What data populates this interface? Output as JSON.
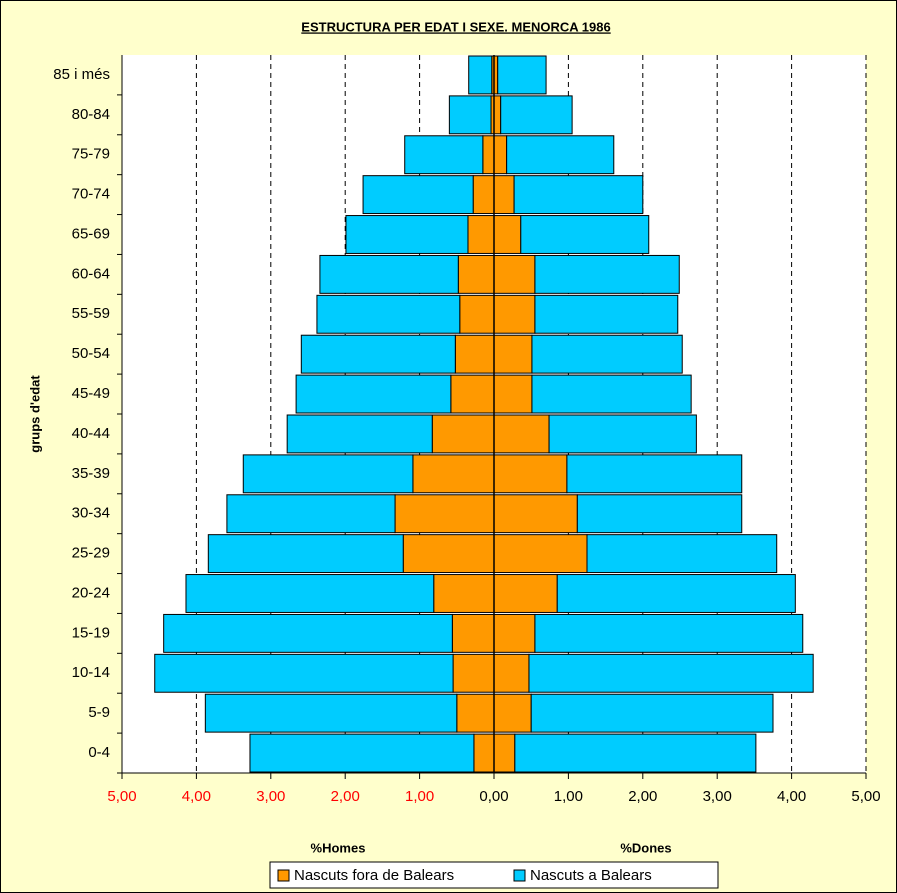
{
  "chart_data": {
    "type": "pyramid",
    "title": "ESTRUCTURA PER EDAT I SEXE. MENORCA 1986",
    "y_label": "grups d'edat",
    "left_label": "%Homes",
    "right_label": "%Dones",
    "categories": [
      "0-4",
      "5-9",
      "10-14",
      "15-19",
      "20-24",
      "25-29",
      "30-34",
      "35-39",
      "40-44",
      "45-49",
      "50-54",
      "55-59",
      "60-64",
      "65-69",
      "70-74",
      "75-79",
      "80-84",
      "85 i més"
    ],
    "series": [
      {
        "name": "Nascuts fora de Balears",
        "color": "#ff9900",
        "homes": [
          -0.27,
          -0.5,
          -0.55,
          -0.56,
          -0.81,
          -1.22,
          -1.33,
          -1.09,
          -0.83,
          -0.58,
          -0.52,
          -0.46,
          -0.48,
          -0.35,
          -0.28,
          -0.15,
          -0.04,
          -0.03
        ],
        "dones": [
          0.28,
          0.5,
          0.47,
          0.55,
          0.85,
          1.25,
          1.12,
          0.98,
          0.74,
          0.51,
          0.51,
          0.55,
          0.55,
          0.36,
          0.27,
          0.17,
          0.09,
          0.05
        ]
      },
      {
        "name": "Nascuts a Balears",
        "color": "#00ccff",
        "homes": [
          -3.01,
          -3.38,
          -4.01,
          -3.88,
          -3.33,
          -2.62,
          -2.26,
          -2.28,
          -1.95,
          -2.08,
          -2.07,
          -1.92,
          -1.86,
          -1.64,
          -1.48,
          -1.05,
          -0.56,
          -0.31
        ],
        "dones": [
          3.24,
          3.25,
          3.82,
          3.6,
          3.2,
          2.55,
          2.21,
          2.35,
          1.98,
          2.14,
          2.02,
          1.92,
          1.94,
          1.72,
          1.73,
          1.44,
          0.96,
          0.65
        ]
      }
    ],
    "xlim": [
      -5,
      5
    ],
    "xticks": [
      {
        "value": -5,
        "label": "5,00"
      },
      {
        "value": -4,
        "label": "4,00"
      },
      {
        "value": -3,
        "label": "3,00"
      },
      {
        "value": -2,
        "label": "2,00"
      },
      {
        "value": -1,
        "label": "1,00"
      },
      {
        "value": 0,
        "label": "0,00"
      },
      {
        "value": 1,
        "label": "1,00"
      },
      {
        "value": 2,
        "label": "2,00"
      },
      {
        "value": 3,
        "label": "3,00"
      },
      {
        "value": 4,
        "label": "4,00"
      },
      {
        "value": 5,
        "label": "5,00"
      }
    ],
    "negative_tick_color": "#ff0000",
    "grid": true,
    "legend": "bottom"
  }
}
